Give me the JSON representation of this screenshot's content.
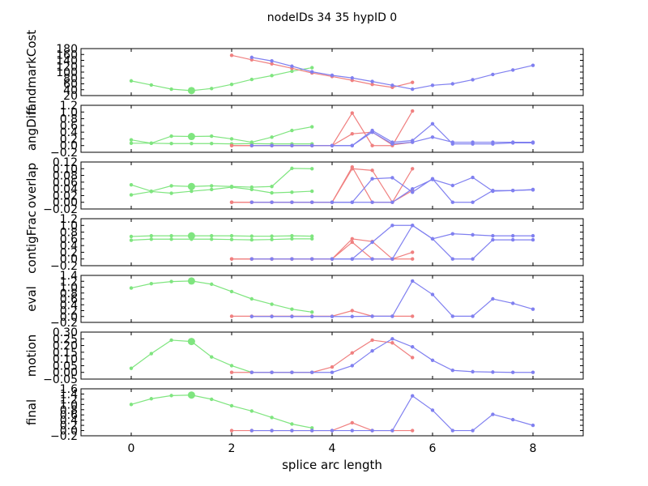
{
  "chart_data": {
    "type": "line",
    "title": "nodeIDs 34 35 hypID 0",
    "xlabel": "splice arc length",
    "xlim": [
      -1,
      9
    ],
    "xticks": [
      "0",
      "2",
      "4",
      "6",
      "8"
    ],
    "colors": {
      "green": "#7fe57f",
      "red": "#f08080",
      "blue": "#8080f0"
    },
    "panels": [
      {
        "ylabel": "landmarkCost",
        "ylim": [
          20,
          180
        ],
        "yticks": [
          "20",
          "40",
          "60",
          "80",
          "100",
          "120",
          "140",
          "160",
          "180"
        ],
        "series": [
          {
            "color": "green",
            "x": [
              0,
              0.4,
              0.8,
              1.2,
              1.6,
              2.0,
              2.4,
              2.8,
              3.2,
              3.6
            ],
            "y": [
              70,
              56,
              42,
              37,
              44,
              58,
              75,
              88,
              103,
              115
            ],
            "big_index": 3
          },
          {
            "color": "red",
            "x": [
              2.0,
              2.4,
              2.8,
              3.2,
              3.6,
              4.0,
              4.4,
              4.8,
              5.2,
              5.6
            ],
            "y": [
              157,
              142,
              128,
              113,
              97,
              85,
              72,
              58,
              48,
              65
            ]
          },
          {
            "color": "blue",
            "x": [
              2.4,
              2.8,
              3.2,
              3.6,
              4.0,
              4.4,
              4.8,
              5.2,
              5.6,
              6.0,
              6.4,
              6.8,
              7.2,
              7.6,
              8.0
            ],
            "y": [
              150,
              138,
              120,
              101,
              89,
              80,
              68,
              55,
              42,
              55,
              60,
              74,
              92,
              107,
              123
            ]
          }
        ]
      },
      {
        "ylabel": "angDiff",
        "ylim": [
          -0.2,
          1.2
        ],
        "yticks": [
          "−0.2",
          "0.0",
          "0.2",
          "0.4",
          "0.6",
          "0.8",
          "1.0",
          "1.2"
        ],
        "series": [
          {
            "color": "green",
            "x": [
              0,
              0.4,
              0.8,
              1.2,
              1.6,
              2.0,
              2.4,
              2.8,
              3.2,
              3.6
            ],
            "y": [
              0.17,
              0.07,
              0.28,
              0.27,
              0.28,
              0.2,
              0.1,
              0.25,
              0.45,
              0.56
            ],
            "big_index": 3
          },
          {
            "color": "green",
            "x": [
              0,
              0.4,
              0.8,
              1.2,
              1.6,
              2.0,
              2.4,
              2.8,
              3.2,
              3.6
            ],
            "y": [
              0.07,
              0.07,
              0.06,
              0.06,
              0.06,
              0.05,
              0.06,
              0.05,
              0.05,
              0.05
            ]
          },
          {
            "color": "red",
            "x": [
              2.0,
              2.4,
              2.8,
              3.2,
              3.6,
              4.0,
              4.4,
              4.8,
              5.2,
              5.6
            ],
            "y": [
              0.0,
              0.0,
              0.0,
              0.0,
              0.0,
              0.0,
              0.97,
              0.0,
              0.0,
              1.03
            ]
          },
          {
            "color": "red",
            "x": [
              2.0,
              2.4,
              2.8,
              3.2,
              3.6,
              4.0,
              4.4,
              4.8,
              5.2,
              5.6
            ],
            "y": [
              0.0,
              0.0,
              0.0,
              0.0,
              0.0,
              0.0,
              0.35,
              0.4,
              0.02,
              0.1
            ]
          },
          {
            "color": "blue",
            "x": [
              2.4,
              2.8,
              3.2,
              3.6,
              4.0,
              4.4,
              4.8,
              5.2,
              5.6,
              6.0,
              6.4,
              6.8,
              7.2,
              7.6,
              8.0
            ],
            "y": [
              0.0,
              0.0,
              0.0,
              0.0,
              0.0,
              0.0,
              0.45,
              0.1,
              0.15,
              0.65,
              0.05,
              0.05,
              0.05,
              0.08,
              0.08
            ]
          },
          {
            "color": "blue",
            "x": [
              4.0,
              4.4,
              4.8,
              5.2,
              5.6,
              6.0,
              6.4,
              6.8,
              7.2,
              7.6,
              8.0
            ],
            "y": [
              0.0,
              0.0,
              0.4,
              0.05,
              0.1,
              0.25,
              0.1,
              0.1,
              0.1,
              0.1,
              0.1
            ]
          }
        ]
      },
      {
        "ylabel": "overlap",
        "ylim": [
          -0.02,
          0.12
        ],
        "yticks": [
          "−0.02",
          "0.00",
          "0.02",
          "0.04",
          "0.06",
          "0.08",
          "0.10",
          "0.12"
        ],
        "series": [
          {
            "color": "green",
            "x": [
              0,
              0.4,
              0.8,
              1.2,
              1.6,
              2.0,
              2.4,
              2.8,
              3.2,
              3.6
            ],
            "y": [
              0.052,
              0.033,
              0.049,
              0.047,
              0.049,
              0.047,
              0.045,
              0.047,
              0.101,
              0.1
            ],
            "big_index": 3
          },
          {
            "color": "green",
            "x": [
              0,
              0.4,
              0.8,
              1.2,
              1.6,
              2.0,
              2.4,
              2.8,
              3.2,
              3.6
            ],
            "y": [
              0.022,
              0.032,
              0.027,
              0.033,
              0.038,
              0.045,
              0.038,
              0.028,
              0.03,
              0.033
            ]
          },
          {
            "color": "red",
            "x": [
              2.0,
              2.4,
              2.8,
              3.2,
              3.6,
              4.0,
              4.4,
              4.8,
              5.2,
              5.6
            ],
            "y": [
              0.0,
              0.0,
              0.0,
              0.0,
              0.0,
              0.0,
              0.105,
              0.0,
              0.0,
              0.1
            ]
          },
          {
            "color": "red",
            "x": [
              2.0,
              2.4,
              2.8,
              3.2,
              3.6,
              4.0,
              4.4,
              4.8,
              5.2,
              5.6
            ],
            "y": [
              0.0,
              0.0,
              0.0,
              0.0,
              0.0,
              0.0,
              0.1,
              0.095,
              0.0,
              0.035
            ]
          },
          {
            "color": "blue",
            "x": [
              2.4,
              2.8,
              3.2,
              3.6,
              4.0,
              4.4,
              4.8,
              5.2,
              5.6,
              6.0,
              6.4,
              6.8,
              7.2,
              7.6,
              8.0
            ],
            "y": [
              0.0,
              0.0,
              0.0,
              0.0,
              0.0,
              0.0,
              0.07,
              0.073,
              0.03,
              0.07,
              0.0,
              0.0,
              0.035,
              0.035,
              0.038
            ]
          },
          {
            "color": "blue",
            "x": [
              4.0,
              4.4,
              4.8,
              5.2,
              5.6,
              6.0,
              6.4,
              6.8,
              7.2,
              7.6,
              8.0
            ],
            "y": [
              0.0,
              0.0,
              0.0,
              0.0,
              0.04,
              0.068,
              0.05,
              0.074,
              0.033,
              0.035,
              0.037
            ]
          }
        ]
      },
      {
        "ylabel": "contigFrac",
        "ylim": [
          -0.2,
          1.2
        ],
        "yticks": [
          "−0.2",
          "0.0",
          "0.2",
          "0.4",
          "0.6",
          "0.8",
          "1.0",
          "1.2"
        ],
        "series": [
          {
            "color": "green",
            "x": [
              0,
              0.4,
              0.8,
              1.2,
              1.6,
              2.0,
              2.4,
              2.8,
              3.2,
              3.6
            ],
            "y": [
              0.67,
              0.69,
              0.69,
              0.69,
              0.69,
              0.69,
              0.68,
              0.68,
              0.69,
              0.68
            ],
            "big_index": 3
          },
          {
            "color": "green",
            "x": [
              0,
              0.4,
              0.8,
              1.2,
              1.6,
              2.0,
              2.4,
              2.8,
              3.2,
              3.6
            ],
            "y": [
              0.56,
              0.59,
              0.59,
              0.59,
              0.59,
              0.58,
              0.57,
              0.58,
              0.6,
              0.6
            ]
          },
          {
            "color": "red",
            "x": [
              2.0,
              2.4,
              2.8,
              3.2,
              3.6,
              4.0,
              4.4,
              4.8,
              5.2,
              5.6
            ],
            "y": [
              0.0,
              0.0,
              0.0,
              0.0,
              0.0,
              0.0,
              0.6,
              0.52,
              0.0,
              0.2
            ]
          },
          {
            "color": "red",
            "x": [
              2.0,
              2.4,
              2.8,
              3.2,
              3.6,
              4.0,
              4.4,
              4.8,
              5.2,
              5.6
            ],
            "y": [
              0.0,
              0.0,
              0.0,
              0.0,
              0.0,
              0.0,
              0.5,
              0.0,
              0.0,
              0.0
            ]
          },
          {
            "color": "blue",
            "x": [
              2.4,
              2.8,
              3.2,
              3.6,
              4.0,
              4.4,
              4.8,
              5.2,
              5.6,
              6.0,
              6.4,
              6.8,
              7.2,
              7.6,
              8.0
            ],
            "y": [
              0.0,
              0.0,
              0.0,
              0.0,
              0.0,
              0.0,
              0.5,
              1.0,
              1.0,
              0.6,
              0.75,
              0.72,
              0.69,
              0.69,
              0.69
            ]
          },
          {
            "color": "blue",
            "x": [
              4.0,
              4.4,
              4.8,
              5.2,
              5.6,
              6.0,
              6.4,
              6.8,
              7.2,
              7.6,
              8.0
            ],
            "y": [
              0.0,
              0.0,
              0.0,
              0.0,
              1.0,
              0.6,
              0.0,
              0.0,
              0.57,
              0.57,
              0.57
            ]
          }
        ]
      },
      {
        "ylabel": "eval",
        "ylim": [
          -0.2,
          1.4
        ],
        "yticks": [
          "−0.2",
          "0.0",
          "0.2",
          "0.4",
          "0.6",
          "0.8",
          "1.0",
          "1.2",
          "1.4"
        ],
        "series": [
          {
            "color": "green",
            "x": [
              0,
              0.4,
              0.8,
              1.2,
              1.6,
              2.0,
              2.4,
              2.8,
              3.2,
              3.6
            ],
            "y": [
              0.97,
              1.12,
              1.19,
              1.21,
              1.1,
              0.85,
              0.6,
              0.42,
              0.25,
              0.15
            ],
            "big_index": 3
          },
          {
            "color": "red",
            "x": [
              2.0,
              2.4,
              2.8,
              3.2,
              3.6,
              4.0,
              4.4,
              4.8,
              5.2,
              5.6
            ],
            "y": [
              0.01,
              0.01,
              0.01,
              0.01,
              0.01,
              0.01,
              0.2,
              0.01,
              0.01,
              0.01
            ]
          },
          {
            "color": "blue",
            "x": [
              2.4,
              2.8,
              3.2,
              3.6,
              4.0,
              4.4,
              4.8,
              5.2,
              5.6,
              6.0,
              6.4,
              6.8,
              7.2,
              7.6,
              8.0
            ],
            "y": [
              0.0,
              0.0,
              0.0,
              0.0,
              0.0,
              0.0,
              0.01,
              0.01,
              1.21,
              0.75,
              0.01,
              0.01,
              0.6,
              0.45,
              0.25
            ]
          }
        ]
      },
      {
        "ylabel": "motion",
        "ylim": [
          -0.05,
          0.3
        ],
        "yticks": [
          "−0.05",
          "0.00",
          "0.05",
          "0.10",
          "0.15",
          "0.20",
          "0.25",
          "0.30"
        ],
        "series": [
          {
            "color": "green",
            "x": [
              0,
              0.4,
              0.8,
              1.2,
              1.6,
              2.0,
              2.4,
              2.8,
              3.2,
              3.6
            ],
            "y": [
              0.03,
              0.14,
              0.24,
              0.23,
              0.115,
              0.05,
              0.0,
              0.0,
              0.0,
              0.0
            ],
            "big_index": 3
          },
          {
            "color": "red",
            "x": [
              2.0,
              2.4,
              2.8,
              3.2,
              3.6,
              4.0,
              4.4,
              4.8,
              5.2,
              5.6
            ],
            "y": [
              0.0,
              0.0,
              0.0,
              0.0,
              0.0,
              0.04,
              0.145,
              0.24,
              0.22,
              0.11
            ]
          },
          {
            "color": "blue",
            "x": [
              2.4,
              2.8,
              3.2,
              3.6,
              4.0,
              4.4,
              4.8,
              5.2,
              5.6,
              6.0,
              6.4,
              6.8,
              7.2,
              7.6,
              8.0
            ],
            "y": [
              0.0,
              0.0,
              0.0,
              0.0,
              0.0,
              0.05,
              0.16,
              0.25,
              0.19,
              0.09,
              0.015,
              0.005,
              0.002,
              0.0,
              0.0
            ]
          }
        ]
      },
      {
        "ylabel": "final",
        "ylim": [
          -0.2,
          1.6
        ],
        "yticks": [
          "−0.2",
          "0.0",
          "0.2",
          "0.4",
          "0.6",
          "0.8",
          "1.0",
          "1.2",
          "1.4",
          "1.6"
        ],
        "series": [
          {
            "color": "green",
            "x": [
              0,
              0.4,
              0.8,
              1.2,
              1.6,
              2.0,
              2.4,
              2.8,
              3.2,
              3.6
            ],
            "y": [
              1.0,
              1.22,
              1.34,
              1.36,
              1.2,
              0.95,
              0.75,
              0.5,
              0.25,
              0.1
            ],
            "big_index": 3
          },
          {
            "color": "red",
            "x": [
              2.0,
              2.4,
              2.8,
              3.2,
              3.6,
              4.0,
              4.4,
              4.8,
              5.2,
              5.6
            ],
            "y": [
              0.0,
              0.0,
              0.0,
              0.0,
              0.0,
              0.0,
              0.3,
              0.0,
              0.0,
              0.0
            ]
          },
          {
            "color": "blue",
            "x": [
              2.4,
              2.8,
              3.2,
              3.6,
              4.0,
              4.4,
              4.8,
              5.2,
              5.6,
              6.0,
              6.4,
              6.8,
              7.2,
              7.6,
              8.0
            ],
            "y": [
              0.0,
              0.0,
              0.0,
              0.0,
              0.0,
              0.0,
              0.0,
              0.0,
              1.33,
              0.78,
              0.0,
              0.0,
              0.62,
              0.42,
              0.2
            ]
          }
        ]
      }
    ]
  }
}
